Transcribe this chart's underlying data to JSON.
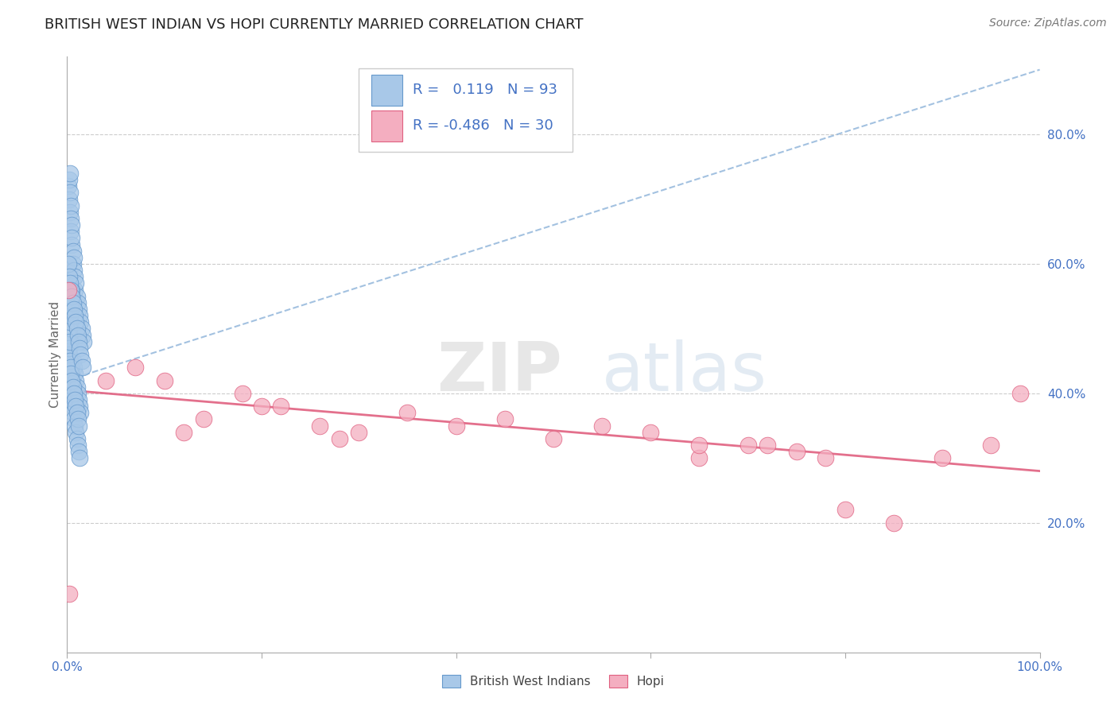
{
  "title": "BRITISH WEST INDIAN VS HOPI CURRENTLY MARRIED CORRELATION CHART",
  "source": "Source: ZipAtlas.com",
  "ylabel": "Currently Married",
  "watermark_zip": "ZIP",
  "watermark_atlas": "atlas",
  "xlim": [
    0.0,
    1.0
  ],
  "ylim": [
    0.0,
    0.92
  ],
  "y_ticks_right": [
    0.2,
    0.4,
    0.6,
    0.8
  ],
  "y_tick_labels_right": [
    "20.0%",
    "40.0%",
    "60.0%",
    "80.0%"
  ],
  "grid_color": "#cccccc",
  "background_color": "#ffffff",
  "blue_color": "#a8c8e8",
  "pink_color": "#f4aec0",
  "blue_edge": "#6699cc",
  "pink_edge": "#e06080",
  "trend_blue_color": "#99bbdd",
  "trend_pink_color": "#e06080",
  "legend_R_blue": "0.119",
  "legend_N_blue": "93",
  "legend_R_pink": "-0.486",
  "legend_N_pink": "30",
  "blue_label": "British West Indians",
  "pink_label": "Hopi",
  "blue_scatter_x": [
    0.001,
    0.002,
    0.002,
    0.003,
    0.003,
    0.003,
    0.004,
    0.004,
    0.004,
    0.005,
    0.005,
    0.005,
    0.006,
    0.006,
    0.007,
    0.007,
    0.008,
    0.008,
    0.009,
    0.01,
    0.011,
    0.012,
    0.013,
    0.014,
    0.015,
    0.016,
    0.017,
    0.001,
    0.002,
    0.002,
    0.003,
    0.003,
    0.004,
    0.004,
    0.005,
    0.005,
    0.006,
    0.006,
    0.007,
    0.008,
    0.009,
    0.01,
    0.011,
    0.012,
    0.013,
    0.001,
    0.002,
    0.002,
    0.003,
    0.003,
    0.004,
    0.004,
    0.005,
    0.005,
    0.006,
    0.007,
    0.008,
    0.009,
    0.01,
    0.011,
    0.012,
    0.013,
    0.014,
    0.001,
    0.002,
    0.003,
    0.003,
    0.004,
    0.004,
    0.005,
    0.006,
    0.007,
    0.008,
    0.009,
    0.01,
    0.011,
    0.012,
    0.001,
    0.002,
    0.003,
    0.004,
    0.005,
    0.006,
    0.007,
    0.008,
    0.009,
    0.01,
    0.011,
    0.012,
    0.013,
    0.014,
    0.015,
    0.016
  ],
  "blue_scatter_y": [
    0.72,
    0.7,
    0.73,
    0.68,
    0.71,
    0.74,
    0.69,
    0.67,
    0.65,
    0.63,
    0.66,
    0.64,
    0.62,
    0.6,
    0.61,
    0.59,
    0.58,
    0.56,
    0.57,
    0.55,
    0.54,
    0.53,
    0.52,
    0.51,
    0.5,
    0.49,
    0.48,
    0.47,
    0.46,
    0.45,
    0.44,
    0.43,
    0.42,
    0.41,
    0.4,
    0.39,
    0.38,
    0.37,
    0.36,
    0.35,
    0.34,
    0.33,
    0.32,
    0.31,
    0.3,
    0.48,
    0.49,
    0.5,
    0.51,
    0.52,
    0.53,
    0.54,
    0.55,
    0.56,
    0.45,
    0.44,
    0.43,
    0.42,
    0.41,
    0.4,
    0.39,
    0.38,
    0.37,
    0.46,
    0.47,
    0.48,
    0.45,
    0.44,
    0.43,
    0.42,
    0.41,
    0.4,
    0.39,
    0.38,
    0.37,
    0.36,
    0.35,
    0.6,
    0.58,
    0.57,
    0.56,
    0.55,
    0.54,
    0.53,
    0.52,
    0.51,
    0.5,
    0.49,
    0.48,
    0.47,
    0.46,
    0.45,
    0.44
  ],
  "pink_scatter_x": [
    0.001,
    0.002,
    0.04,
    0.07,
    0.1,
    0.14,
    0.18,
    0.22,
    0.26,
    0.3,
    0.35,
    0.4,
    0.45,
    0.5,
    0.55,
    0.6,
    0.65,
    0.7,
    0.75,
    0.8,
    0.85,
    0.9,
    0.95,
    0.98,
    0.12,
    0.2,
    0.28,
    0.65,
    0.72,
    0.78
  ],
  "pink_scatter_y": [
    0.56,
    0.09,
    0.42,
    0.44,
    0.42,
    0.36,
    0.4,
    0.38,
    0.35,
    0.34,
    0.37,
    0.35,
    0.36,
    0.33,
    0.35,
    0.34,
    0.3,
    0.32,
    0.31,
    0.22,
    0.2,
    0.3,
    0.32,
    0.4,
    0.34,
    0.38,
    0.33,
    0.32,
    0.32,
    0.3
  ],
  "blue_trend_y_start": 0.42,
  "blue_trend_y_end": 0.9,
  "pink_trend_y_start": 0.405,
  "pink_trend_y_end": 0.28,
  "title_fontsize": 13,
  "axis_label_fontsize": 11,
  "tick_fontsize": 11,
  "legend_fontsize": 13
}
